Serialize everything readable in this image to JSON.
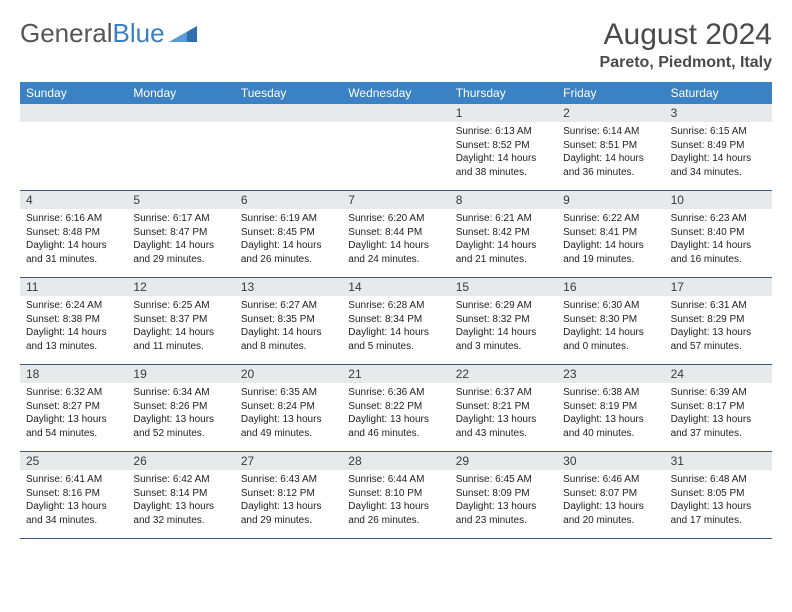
{
  "brand": {
    "part1": "General",
    "part2": "Blue"
  },
  "title": "August 2024",
  "location": "Pareto, Piedmont, Italy",
  "colors": {
    "header_bg": "#3b82c4",
    "daynum_bg": "#e8e9ea",
    "week_border": "#3b5a7a",
    "text": "#222222",
    "title_color": "#4a4a4a"
  },
  "dow": [
    "Sunday",
    "Monday",
    "Tuesday",
    "Wednesday",
    "Thursday",
    "Friday",
    "Saturday"
  ],
  "weeks": [
    [
      null,
      null,
      null,
      null,
      {
        "n": "1",
        "sr": "6:13 AM",
        "ss": "8:52 PM",
        "dl": "14 hours and 38 minutes."
      },
      {
        "n": "2",
        "sr": "6:14 AM",
        "ss": "8:51 PM",
        "dl": "14 hours and 36 minutes."
      },
      {
        "n": "3",
        "sr": "6:15 AM",
        "ss": "8:49 PM",
        "dl": "14 hours and 34 minutes."
      }
    ],
    [
      {
        "n": "4",
        "sr": "6:16 AM",
        "ss": "8:48 PM",
        "dl": "14 hours and 31 minutes."
      },
      {
        "n": "5",
        "sr": "6:17 AM",
        "ss": "8:47 PM",
        "dl": "14 hours and 29 minutes."
      },
      {
        "n": "6",
        "sr": "6:19 AM",
        "ss": "8:45 PM",
        "dl": "14 hours and 26 minutes."
      },
      {
        "n": "7",
        "sr": "6:20 AM",
        "ss": "8:44 PM",
        "dl": "14 hours and 24 minutes."
      },
      {
        "n": "8",
        "sr": "6:21 AM",
        "ss": "8:42 PM",
        "dl": "14 hours and 21 minutes."
      },
      {
        "n": "9",
        "sr": "6:22 AM",
        "ss": "8:41 PM",
        "dl": "14 hours and 19 minutes."
      },
      {
        "n": "10",
        "sr": "6:23 AM",
        "ss": "8:40 PM",
        "dl": "14 hours and 16 minutes."
      }
    ],
    [
      {
        "n": "11",
        "sr": "6:24 AM",
        "ss": "8:38 PM",
        "dl": "14 hours and 13 minutes."
      },
      {
        "n": "12",
        "sr": "6:25 AM",
        "ss": "8:37 PM",
        "dl": "14 hours and 11 minutes."
      },
      {
        "n": "13",
        "sr": "6:27 AM",
        "ss": "8:35 PM",
        "dl": "14 hours and 8 minutes."
      },
      {
        "n": "14",
        "sr": "6:28 AM",
        "ss": "8:34 PM",
        "dl": "14 hours and 5 minutes."
      },
      {
        "n": "15",
        "sr": "6:29 AM",
        "ss": "8:32 PM",
        "dl": "14 hours and 3 minutes."
      },
      {
        "n": "16",
        "sr": "6:30 AM",
        "ss": "8:30 PM",
        "dl": "14 hours and 0 minutes."
      },
      {
        "n": "17",
        "sr": "6:31 AM",
        "ss": "8:29 PM",
        "dl": "13 hours and 57 minutes."
      }
    ],
    [
      {
        "n": "18",
        "sr": "6:32 AM",
        "ss": "8:27 PM",
        "dl": "13 hours and 54 minutes."
      },
      {
        "n": "19",
        "sr": "6:34 AM",
        "ss": "8:26 PM",
        "dl": "13 hours and 52 minutes."
      },
      {
        "n": "20",
        "sr": "6:35 AM",
        "ss": "8:24 PM",
        "dl": "13 hours and 49 minutes."
      },
      {
        "n": "21",
        "sr": "6:36 AM",
        "ss": "8:22 PM",
        "dl": "13 hours and 46 minutes."
      },
      {
        "n": "22",
        "sr": "6:37 AM",
        "ss": "8:21 PM",
        "dl": "13 hours and 43 minutes."
      },
      {
        "n": "23",
        "sr": "6:38 AM",
        "ss": "8:19 PM",
        "dl": "13 hours and 40 minutes."
      },
      {
        "n": "24",
        "sr": "6:39 AM",
        "ss": "8:17 PM",
        "dl": "13 hours and 37 minutes."
      }
    ],
    [
      {
        "n": "25",
        "sr": "6:41 AM",
        "ss": "8:16 PM",
        "dl": "13 hours and 34 minutes."
      },
      {
        "n": "26",
        "sr": "6:42 AM",
        "ss": "8:14 PM",
        "dl": "13 hours and 32 minutes."
      },
      {
        "n": "27",
        "sr": "6:43 AM",
        "ss": "8:12 PM",
        "dl": "13 hours and 29 minutes."
      },
      {
        "n": "28",
        "sr": "6:44 AM",
        "ss": "8:10 PM",
        "dl": "13 hours and 26 minutes."
      },
      {
        "n": "29",
        "sr": "6:45 AM",
        "ss": "8:09 PM",
        "dl": "13 hours and 23 minutes."
      },
      {
        "n": "30",
        "sr": "6:46 AM",
        "ss": "8:07 PM",
        "dl": "13 hours and 20 minutes."
      },
      {
        "n": "31",
        "sr": "6:48 AM",
        "ss": "8:05 PM",
        "dl": "13 hours and 17 minutes."
      }
    ]
  ],
  "labels": {
    "sunrise": "Sunrise:",
    "sunset": "Sunset:",
    "daylight": "Daylight:"
  }
}
